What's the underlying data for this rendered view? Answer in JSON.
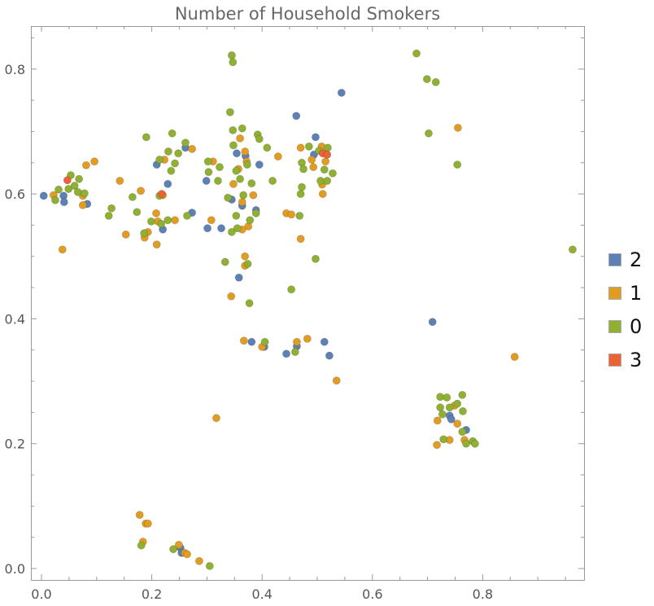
{
  "chart_data": {
    "type": "scatter",
    "title": "Number of Household Smokers",
    "xlabel": "",
    "ylabel": "",
    "xlim": [
      -0.02,
      0.98
    ],
    "ylim": [
      -0.018,
      0.87
    ],
    "xticks": [
      "0.0",
      "0.2",
      "0.4",
      "0.6",
      "0.8"
    ],
    "yticks": [
      "0.0",
      "0.2",
      "0.4",
      "0.6",
      "0.8"
    ],
    "xtick_values": [
      0,
      0.2,
      0.4,
      0.6,
      0.8
    ],
    "ytick_values": [
      0,
      0.2,
      0.4,
      0.6,
      0.8
    ],
    "grid": false,
    "legend_position": "right",
    "series": [
      {
        "name": "2",
        "color": "#5E81B5",
        "points": [
          [
            0.004,
            0.597
          ],
          [
            0.04,
            0.597
          ],
          [
            0.041,
            0.587
          ],
          [
            0.083,
            0.584
          ],
          [
            0.209,
            0.647
          ],
          [
            0.229,
            0.616
          ],
          [
            0.22,
            0.543
          ],
          [
            0.261,
            0.674
          ],
          [
            0.273,
            0.57
          ],
          [
            0.301,
            0.545
          ],
          [
            0.299,
            0.621
          ],
          [
            0.326,
            0.545
          ],
          [
            0.345,
            0.591
          ],
          [
            0.354,
            0.665
          ],
          [
            0.37,
            0.661
          ],
          [
            0.364,
            0.581
          ],
          [
            0.395,
            0.647
          ],
          [
            0.389,
            0.574
          ],
          [
            0.358,
            0.466
          ],
          [
            0.381,
            0.363
          ],
          [
            0.404,
            0.355
          ],
          [
            0.462,
            0.725
          ],
          [
            0.497,
            0.691
          ],
          [
            0.494,
            0.663
          ],
          [
            0.544,
            0.762
          ],
          [
            0.463,
            0.356
          ],
          [
            0.444,
            0.344
          ],
          [
            0.513,
            0.363
          ],
          [
            0.522,
            0.341
          ],
          [
            0.709,
            0.395
          ],
          [
            0.74,
            0.245
          ],
          [
            0.743,
            0.239
          ],
          [
            0.77,
            0.222
          ],
          [
            0.252,
            0.033
          ],
          [
            0.254,
            0.025
          ]
        ]
      },
      {
        "name": "1",
        "color": "#E19C24",
        "points": [
          [
            0.022,
            0.598
          ],
          [
            0.075,
            0.597
          ],
          [
            0.075,
            0.582
          ],
          [
            0.081,
            0.646
          ],
          [
            0.096,
            0.652
          ],
          [
            0.038,
            0.511
          ],
          [
            0.142,
            0.621
          ],
          [
            0.18,
            0.605
          ],
          [
            0.153,
            0.535
          ],
          [
            0.223,
            0.655
          ],
          [
            0.22,
            0.598
          ],
          [
            0.208,
            0.569
          ],
          [
            0.211,
            0.556
          ],
          [
            0.193,
            0.539
          ],
          [
            0.187,
            0.53
          ],
          [
            0.242,
            0.558
          ],
          [
            0.209,
            0.519
          ],
          [
            0.273,
            0.672
          ],
          [
            0.317,
            0.241
          ],
          [
            0.311,
            0.652
          ],
          [
            0.308,
            0.558
          ],
          [
            0.344,
            0.436
          ],
          [
            0.36,
            0.689
          ],
          [
            0.348,
            0.616
          ],
          [
            0.357,
            0.64
          ],
          [
            0.369,
            0.668
          ],
          [
            0.372,
            0.652
          ],
          [
            0.364,
            0.587
          ],
          [
            0.384,
            0.598
          ],
          [
            0.375,
            0.548
          ],
          [
            0.364,
            0.543
          ],
          [
            0.369,
            0.5
          ],
          [
            0.369,
            0.485
          ],
          [
            0.367,
            0.365
          ],
          [
            0.4,
            0.355
          ],
          [
            0.429,
            0.66
          ],
          [
            0.444,
            0.569
          ],
          [
            0.453,
            0.567
          ],
          [
            0.47,
            0.528
          ],
          [
            0.47,
            0.674
          ],
          [
            0.49,
            0.655
          ],
          [
            0.493,
            0.643
          ],
          [
            0.508,
            0.676
          ],
          [
            0.515,
            0.652
          ],
          [
            0.51,
            0.6
          ],
          [
            0.509,
            0.615
          ],
          [
            0.482,
            0.368
          ],
          [
            0.463,
            0.363
          ],
          [
            0.535,
            0.301
          ],
          [
            0.755,
            0.706
          ],
          [
            0.858,
            0.339
          ],
          [
            0.749,
            0.261
          ],
          [
            0.754,
            0.232
          ],
          [
            0.767,
            0.206
          ],
          [
            0.718,
            0.237
          ],
          [
            0.74,
            0.206
          ],
          [
            0.717,
            0.198
          ],
          [
            0.178,
            0.086
          ],
          [
            0.189,
            0.072
          ],
          [
            0.184,
            0.043
          ],
          [
            0.193,
            0.072
          ],
          [
            0.249,
            0.038
          ],
          [
            0.26,
            0.025
          ],
          [
            0.264,
            0.023
          ],
          [
            0.286,
            0.012
          ]
        ]
      },
      {
        "name": "0",
        "color": "#8FB032",
        "points": [
          [
            0.025,
            0.59
          ],
          [
            0.053,
            0.63
          ],
          [
            0.049,
            0.608
          ],
          [
            0.06,
            0.613
          ],
          [
            0.068,
            0.624
          ],
          [
            0.066,
            0.603
          ],
          [
            0.078,
            0.601
          ],
          [
            0.031,
            0.607
          ],
          [
            0.127,
            0.577
          ],
          [
            0.122,
            0.565
          ],
          [
            0.165,
            0.595
          ],
          [
            0.173,
            0.571
          ],
          [
            0.19,
            0.691
          ],
          [
            0.214,
            0.655
          ],
          [
            0.23,
            0.668
          ],
          [
            0.237,
            0.697
          ],
          [
            0.248,
            0.665
          ],
          [
            0.242,
            0.649
          ],
          [
            0.235,
            0.637
          ],
          [
            0.214,
            0.597
          ],
          [
            0.199,
            0.556
          ],
          [
            0.186,
            0.537
          ],
          [
            0.229,
            0.558
          ],
          [
            0.217,
            0.552
          ],
          [
            0.261,
            0.682
          ],
          [
            0.264,
            0.565
          ],
          [
            0.303,
            0.635
          ],
          [
            0.302,
            0.652
          ],
          [
            0.323,
            0.643
          ],
          [
            0.32,
            0.621
          ],
          [
            0.333,
            0.491
          ],
          [
            0.342,
            0.731
          ],
          [
            0.345,
            0.822
          ],
          [
            0.347,
            0.811
          ],
          [
            0.347,
            0.702
          ],
          [
            0.364,
            0.705
          ],
          [
            0.348,
            0.678
          ],
          [
            0.338,
            0.594
          ],
          [
            0.353,
            0.637
          ],
          [
            0.373,
            0.647
          ],
          [
            0.36,
            0.624
          ],
          [
            0.353,
            0.565
          ],
          [
            0.366,
            0.598
          ],
          [
            0.381,
            0.617
          ],
          [
            0.392,
            0.695
          ],
          [
            0.395,
            0.688
          ],
          [
            0.409,
            0.674
          ],
          [
            0.389,
            0.569
          ],
          [
            0.378,
            0.558
          ],
          [
            0.345,
            0.539
          ],
          [
            0.355,
            0.545
          ],
          [
            0.374,
            0.488
          ],
          [
            0.377,
            0.425
          ],
          [
            0.405,
            0.363
          ],
          [
            0.419,
            0.621
          ],
          [
            0.468,
            0.565
          ],
          [
            0.453,
            0.447
          ],
          [
            0.47,
            0.6
          ],
          [
            0.472,
            0.611
          ],
          [
            0.472,
            0.65
          ],
          [
            0.475,
            0.64
          ],
          [
            0.485,
            0.676
          ],
          [
            0.503,
            0.669
          ],
          [
            0.519,
            0.674
          ],
          [
            0.513,
            0.639
          ],
          [
            0.506,
            0.621
          ],
          [
            0.518,
            0.621
          ],
          [
            0.528,
            0.633
          ],
          [
            0.497,
            0.496
          ],
          [
            0.46,
            0.347
          ],
          [
            0.68,
            0.825
          ],
          [
            0.699,
            0.784
          ],
          [
            0.715,
            0.779
          ],
          [
            0.702,
            0.697
          ],
          [
            0.754,
            0.647
          ],
          [
            0.963,
            0.511
          ],
          [
            0.723,
            0.275
          ],
          [
            0.735,
            0.274
          ],
          [
            0.723,
            0.258
          ],
          [
            0.74,
            0.258
          ],
          [
            0.754,
            0.264
          ],
          [
            0.763,
            0.278
          ],
          [
            0.764,
            0.252
          ],
          [
            0.763,
            0.219
          ],
          [
            0.77,
            0.2
          ],
          [
            0.782,
            0.204
          ],
          [
            0.786,
            0.2
          ],
          [
            0.729,
            0.207
          ],
          [
            0.727,
            0.247
          ],
          [
            0.181,
            0.037
          ],
          [
            0.239,
            0.031
          ],
          [
            0.305,
            0.004
          ]
        ]
      },
      {
        "name": "3",
        "color": "#EB6235",
        "points": [
          [
            0.047,
            0.622
          ],
          [
            0.218,
            0.6
          ],
          [
            0.51,
            0.665
          ],
          [
            0.518,
            0.663
          ]
        ]
      }
    ]
  }
}
